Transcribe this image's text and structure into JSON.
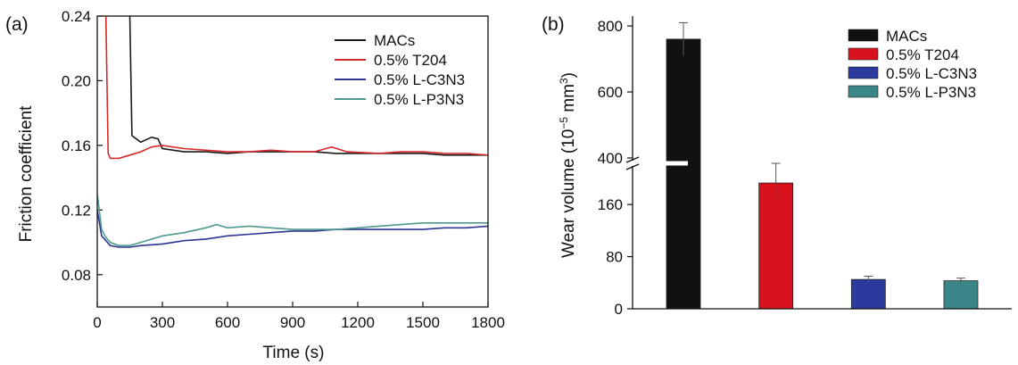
{
  "chart_data": [
    {
      "type": "line",
      "panel_label": "(a)",
      "xlabel": "Time (s)",
      "ylabel": "Friction coefficient",
      "xlim": [
        0,
        1800
      ],
      "ylim": [
        0.06,
        0.24
      ],
      "xticks": [
        "0",
        "300",
        "600",
        "900",
        "1200",
        "1500",
        "1800"
      ],
      "yticks": [
        "0.08",
        "0.12",
        "0.16",
        "0.20",
        "0.24"
      ],
      "legend_position": "top-right",
      "series": [
        {
          "name": "MACs",
          "color": "#1a1a1a",
          "x": [
            150,
            160,
            200,
            250,
            280,
            300,
            350,
            400,
            500,
            600,
            700,
            800,
            900,
            1000,
            1100,
            1200,
            1300,
            1400,
            1500,
            1600,
            1700,
            1800
          ],
          "y": [
            0.24,
            0.166,
            0.162,
            0.165,
            0.164,
            0.158,
            0.157,
            0.156,
            0.156,
            0.155,
            0.156,
            0.156,
            0.156,
            0.156,
            0.155,
            0.155,
            0.155,
            0.155,
            0.155,
            0.154,
            0.154,
            0.154
          ]
        },
        {
          "name": "0.5% T204",
          "color": "#d42a2a",
          "x": [
            40,
            50,
            60,
            80,
            100,
            150,
            200,
            250,
            300,
            400,
            500,
            600,
            700,
            800,
            900,
            1000,
            1080,
            1150,
            1300,
            1400,
            1500,
            1600,
            1700,
            1800
          ],
          "y": [
            0.24,
            0.155,
            0.152,
            0.152,
            0.152,
            0.154,
            0.156,
            0.159,
            0.16,
            0.158,
            0.157,
            0.156,
            0.156,
            0.157,
            0.156,
            0.156,
            0.159,
            0.156,
            0.155,
            0.156,
            0.156,
            0.155,
            0.155,
            0.154
          ]
        },
        {
          "name": "0.5% L-C3N3",
          "color": "#2d3591",
          "x": [
            0,
            20,
            40,
            60,
            100,
            150,
            200,
            300,
            400,
            500,
            600,
            700,
            800,
            900,
            1000,
            1100,
            1200,
            1300,
            1400,
            1500,
            1600,
            1700,
            1800
          ],
          "y": [
            0.12,
            0.104,
            0.101,
            0.098,
            0.097,
            0.097,
            0.098,
            0.099,
            0.101,
            0.102,
            0.104,
            0.105,
            0.106,
            0.107,
            0.107,
            0.108,
            0.108,
            0.108,
            0.108,
            0.108,
            0.109,
            0.109,
            0.11
          ]
        },
        {
          "name": "0.5% L-P3N3",
          "color": "#4d9a8e",
          "x": [
            0,
            20,
            40,
            60,
            100,
            150,
            200,
            300,
            400,
            500,
            550,
            600,
            700,
            800,
            900,
            1000,
            1100,
            1200,
            1300,
            1400,
            1500,
            1600,
            1700,
            1800
          ],
          "y": [
            0.13,
            0.108,
            0.103,
            0.1,
            0.098,
            0.098,
            0.1,
            0.104,
            0.106,
            0.109,
            0.111,
            0.109,
            0.11,
            0.109,
            0.108,
            0.108,
            0.108,
            0.109,
            0.11,
            0.111,
            0.112,
            0.112,
            0.112,
            0.112
          ]
        }
      ]
    },
    {
      "type": "bar",
      "panel_label": "(b)",
      "ylabel_main": "Wear volume (10",
      "ylabel_sup": "−5",
      "ylabel_tail": " mm",
      "ylabel_sup2": "3",
      "ylabel_close": ")",
      "axis_break": true,
      "lower_ylim": [
        0,
        215
      ],
      "upper_ylim": [
        400,
        830
      ],
      "yticks_lower": [
        "0",
        "80",
        "160"
      ],
      "yticks_upper": [
        "400",
        "600",
        "800"
      ],
      "legend_position": "top-right",
      "categories": [
        "MACs",
        "0.5% T204",
        "0.5% L-C3N3",
        "0.5% L-P3N3"
      ],
      "values": [
        760,
        193,
        45,
        43
      ],
      "errors": [
        50,
        25,
        5,
        4
      ],
      "colors": [
        "#111111",
        "#d8121c",
        "#2c3a9e",
        "#3a8585"
      ]
    }
  ]
}
